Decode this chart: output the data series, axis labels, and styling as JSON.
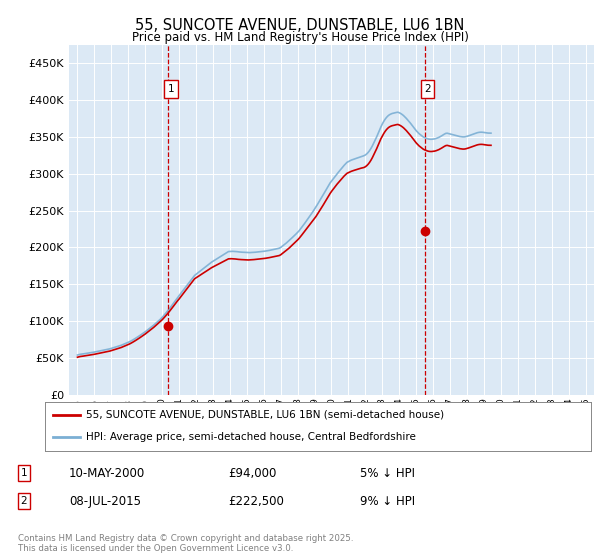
{
  "title": "55, SUNCOTE AVENUE, DUNSTABLE, LU6 1BN",
  "subtitle": "Price paid vs. HM Land Registry's House Price Index (HPI)",
  "bg_color": "#dce9f5",
  "outer_bg_color": "#ffffff",
  "red_color": "#cc0000",
  "blue_color": "#7bafd4",
  "marker1_date": "10-MAY-2000",
  "marker1_price": 94000,
  "marker1_label": "£94,000",
  "marker1_pct": "5% ↓ HPI",
  "marker2_date": "08-JUL-2015",
  "marker2_price": 222500,
  "marker2_label": "£222,500",
  "marker2_pct": "9% ↓ HPI",
  "legend1": "55, SUNCOTE AVENUE, DUNSTABLE, LU6 1BN (semi-detached house)",
  "legend2": "HPI: Average price, semi-detached house, Central Bedfordshire",
  "footer": "Contains HM Land Registry data © Crown copyright and database right 2025.\nThis data is licensed under the Open Government Licence v3.0.",
  "ylim": [
    0,
    475000
  ],
  "yticks": [
    0,
    50000,
    100000,
    150000,
    200000,
    250000,
    300000,
    350000,
    400000,
    450000
  ],
  "xlim_start": 1995.0,
  "xlim_end": 2025.5,
  "marker1_x": 2000.37,
  "marker2_x": 2015.52,
  "hpi_monthly": [
    54000,
    54500,
    55000,
    55200,
    55500,
    55800,
    56000,
    56300,
    56700,
    57000,
    57300,
    57600,
    58000,
    58400,
    58800,
    59200,
    59600,
    60000,
    60400,
    60800,
    61200,
    61600,
    62000,
    62400,
    63000,
    63600,
    64200,
    64800,
    65400,
    66000,
    66600,
    67200,
    68000,
    68800,
    69600,
    70400,
    71200,
    72100,
    73100,
    74200,
    75300,
    76500,
    77700,
    79000,
    80200,
    81500,
    82800,
    84000,
    85500,
    87000,
    88500,
    90000,
    91500,
    93000,
    94500,
    96200,
    97900,
    99600,
    101300,
    103000,
    105000,
    107200,
    109500,
    111800,
    114000,
    116500,
    119000,
    121600,
    124200,
    126800,
    129400,
    132000,
    134500,
    137000,
    139500,
    142000,
    144500,
    147000,
    149500,
    152000,
    154500,
    157000,
    159500,
    162000,
    163500,
    165000,
    166500,
    168000,
    169500,
    171000,
    172500,
    174000,
    175500,
    177000,
    178500,
    180000,
    181200,
    182400,
    183600,
    184800,
    186000,
    187200,
    188400,
    189600,
    190800,
    192000,
    193200,
    194400,
    194500,
    194600,
    194700,
    194600,
    194500,
    194300,
    194000,
    193800,
    193600,
    193500,
    193400,
    193300,
    193200,
    193100,
    193000,
    193100,
    193200,
    193300,
    193500,
    193700,
    194000,
    194200,
    194400,
    194600,
    194800,
    195000,
    195300,
    195600,
    196000,
    196400,
    196800,
    197200,
    197600,
    198000,
    198500,
    199000,
    200000,
    201500,
    203000,
    204500,
    206000,
    207700,
    209400,
    211200,
    213000,
    214800,
    216600,
    218500,
    220500,
    222500,
    225000,
    227500,
    230000,
    232700,
    235400,
    238100,
    240800,
    243500,
    246200,
    249000,
    252000,
    255000,
    258200,
    261400,
    264600,
    267800,
    271000,
    274300,
    277600,
    280900,
    284200,
    287500,
    290000,
    292500,
    295000,
    297500,
    300000,
    302300,
    304600,
    306900,
    309200,
    311500,
    313500,
    315500,
    316500,
    317500,
    318500,
    319200,
    319800,
    320500,
    321200,
    321800,
    322500,
    323200,
    323800,
    324500,
    325500,
    327000,
    329000,
    331500,
    334500,
    338000,
    342000,
    346000,
    350000,
    354500,
    359000,
    363500,
    367500,
    371000,
    374000,
    376500,
    378500,
    380000,
    381000,
    381800,
    382300,
    382800,
    383200,
    383500,
    382800,
    381800,
    380500,
    379000,
    377200,
    375200,
    373000,
    370800,
    368500,
    366000,
    363500,
    361000,
    358500,
    356500,
    354500,
    353000,
    351500,
    350000,
    349000,
    348200,
    347500,
    347000,
    346800,
    346800,
    347000,
    347300,
    347800,
    348500,
    349300,
    350300,
    351400,
    352600,
    353800,
    354800,
    355000,
    354500,
    354000,
    353500,
    353000,
    352500,
    352000,
    351500,
    351000,
    350500,
    350200,
    350000,
    350000,
    350300,
    350800,
    351400,
    352100,
    352800,
    353500,
    354200,
    354900,
    355500,
    356000,
    356300,
    356400,
    356300,
    356000,
    355700,
    355400,
    355200,
    355100,
    355100
  ],
  "red_monthly": [
    51000,
    51500,
    52000,
    52200,
    52500,
    52800,
    53000,
    53300,
    53700,
    54000,
    54300,
    54600,
    55000,
    55400,
    55800,
    56200,
    56600,
    57000,
    57400,
    57800,
    58200,
    58600,
    59000,
    59400,
    60000,
    60600,
    61200,
    61800,
    62400,
    63000,
    63600,
    64200,
    65000,
    65800,
    66600,
    67400,
    68200,
    69100,
    70100,
    71200,
    72300,
    73500,
    74700,
    76000,
    77200,
    78500,
    79800,
    81000,
    82500,
    84000,
    85500,
    87000,
    88500,
    90000,
    91500,
    93200,
    94900,
    96600,
    98300,
    100000,
    101800,
    103800,
    106000,
    108200,
    110500,
    112800,
    115200,
    117700,
    120200,
    122800,
    125300,
    127800,
    130000,
    132500,
    135000,
    137500,
    140000,
    142500,
    145000,
    147500,
    150000,
    152500,
    155000,
    157500,
    158700,
    160000,
    161200,
    162500,
    163700,
    165000,
    166200,
    167500,
    168700,
    170000,
    171200,
    172500,
    173500,
    174500,
    175500,
    176500,
    177500,
    178500,
    179500,
    180500,
    181500,
    182500,
    183500,
    184500,
    184600,
    184700,
    184600,
    184500,
    184300,
    184000,
    183800,
    183600,
    183500,
    183400,
    183300,
    183200,
    183100,
    183000,
    183100,
    183200,
    183300,
    183500,
    183700,
    184000,
    184200,
    184400,
    184600,
    184800,
    185000,
    185200,
    185500,
    185800,
    186200,
    186600,
    187000,
    187400,
    187800,
    188200,
    188600,
    189000,
    190000,
    191500,
    193000,
    194500,
    196000,
    197600,
    199200,
    201000,
    202800,
    204600,
    206400,
    208200,
    210200,
    212200,
    214500,
    217000,
    219500,
    222000,
    224500,
    227000,
    229500,
    232000,
    234500,
    237000,
    239500,
    242000,
    245000,
    248000,
    251000,
    254000,
    257200,
    260400,
    263600,
    266800,
    270000,
    273200,
    276000,
    278500,
    281000,
    283500,
    286000,
    288200,
    290400,
    292600,
    294800,
    297000,
    298800,
    300600,
    301500,
    302500,
    303300,
    304000,
    304600,
    305200,
    305800,
    306400,
    307000,
    307600,
    308000,
    308500,
    309500,
    311000,
    313000,
    315500,
    318500,
    322000,
    326000,
    330000,
    334000,
    338500,
    343000,
    347500,
    351000,
    354500,
    357500,
    360000,
    362000,
    363500,
    364500,
    365200,
    365700,
    366200,
    366600,
    366900,
    366200,
    365200,
    363900,
    362400,
    360600,
    358600,
    356400,
    354200,
    351900,
    349400,
    346900,
    344400,
    341900,
    339900,
    337900,
    336400,
    334900,
    333400,
    332400,
    331600,
    330900,
    330400,
    330200,
    330200,
    330400,
    330700,
    331200,
    331900,
    332700,
    333700,
    334800,
    336000,
    337200,
    338200,
    338500,
    338000,
    337500,
    337000,
    336500,
    336000,
    335500,
    335000,
    334500,
    334000,
    333700,
    333500,
    333500,
    333800,
    334300,
    334900,
    335600,
    336300,
    337000,
    337700,
    338400,
    339000,
    339500,
    339800,
    339900,
    339800,
    339500,
    339200,
    338900,
    338700,
    338600,
    338600
  ]
}
